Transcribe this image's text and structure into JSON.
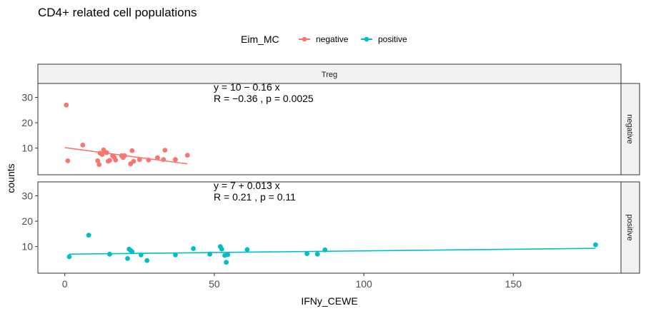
{
  "chart_data": {
    "type": "scatter",
    "title": "CD4+ related cell populations",
    "xlabel": "IFNy_CEWE",
    "ylabel": "counts",
    "xlim": [
      -9,
      186
    ],
    "ylim": [
      -0.5,
      35.5
    ],
    "x_ticks": [
      0,
      50,
      100,
      150
    ],
    "y_ticks": [
      10,
      20,
      30
    ],
    "grid": false,
    "legend": {
      "title": "Eim_MC",
      "position": "top",
      "entries": [
        {
          "label": "negative",
          "color": "#F8766D"
        },
        {
          "label": "positive",
          "color": "#00BFC4"
        }
      ]
    },
    "facet_column": "Treg",
    "series": [
      {
        "name": "negative",
        "panel": "negative",
        "color": "#F8766D",
        "points": [
          [
            0.5,
            27
          ],
          [
            1,
            5
          ],
          [
            6,
            11.2
          ],
          [
            11,
            5
          ],
          [
            11.5,
            3.5
          ],
          [
            11.8,
            8
          ],
          [
            12.5,
            7.5
          ],
          [
            13,
            9.3
          ],
          [
            14,
            8.2
          ],
          [
            14.5,
            4.8
          ],
          [
            15,
            5.2
          ],
          [
            16,
            7
          ],
          [
            16.5,
            6.4
          ],
          [
            17,
            5.3
          ],
          [
            19,
            7
          ],
          [
            19.5,
            6.3
          ],
          [
            20,
            7
          ],
          [
            22,
            3.8
          ],
          [
            22.5,
            9
          ],
          [
            23,
            4.8
          ],
          [
            25,
            5.5
          ],
          [
            28,
            5.3
          ],
          [
            31,
            6.2
          ],
          [
            33,
            5.5
          ],
          [
            33.5,
            9.2
          ],
          [
            37,
            5.5
          ],
          [
            41,
            7.2
          ]
        ],
        "fit": {
          "x": [
            0,
            41
          ],
          "y": [
            10.2,
            3.8
          ]
        },
        "equation": "y = 10 − 0.16 x",
        "stats": "R = −0.36 , p = 0.0025"
      },
      {
        "name": "positive",
        "panel": "positive",
        "color": "#00BFC4",
        "points": [
          [
            1.5,
            6
          ],
          [
            8,
            14.5
          ],
          [
            15,
            7
          ],
          [
            21,
            5.3
          ],
          [
            21.5,
            9
          ],
          [
            22,
            8.5
          ],
          [
            22.5,
            8
          ],
          [
            25.5,
            6.7
          ],
          [
            27.5,
            4.5
          ],
          [
            37,
            6.7
          ],
          [
            43,
            9.2
          ],
          [
            48.5,
            7
          ],
          [
            52,
            10
          ],
          [
            52.5,
            9
          ],
          [
            53.5,
            6.5
          ],
          [
            54,
            3.8
          ],
          [
            54.5,
            6.8
          ],
          [
            61,
            8.8
          ],
          [
            81,
            7.2
          ],
          [
            84.5,
            7
          ],
          [
            87,
            8.7
          ],
          [
            177.5,
            10.7
          ]
        ],
        "fit": {
          "x": [
            1.5,
            177.5
          ],
          "y": [
            7.02,
            9.31
          ]
        },
        "equation": "y = 7 + 0.013 x",
        "stats": "R = 0.21 , p = 0.11"
      }
    ]
  }
}
